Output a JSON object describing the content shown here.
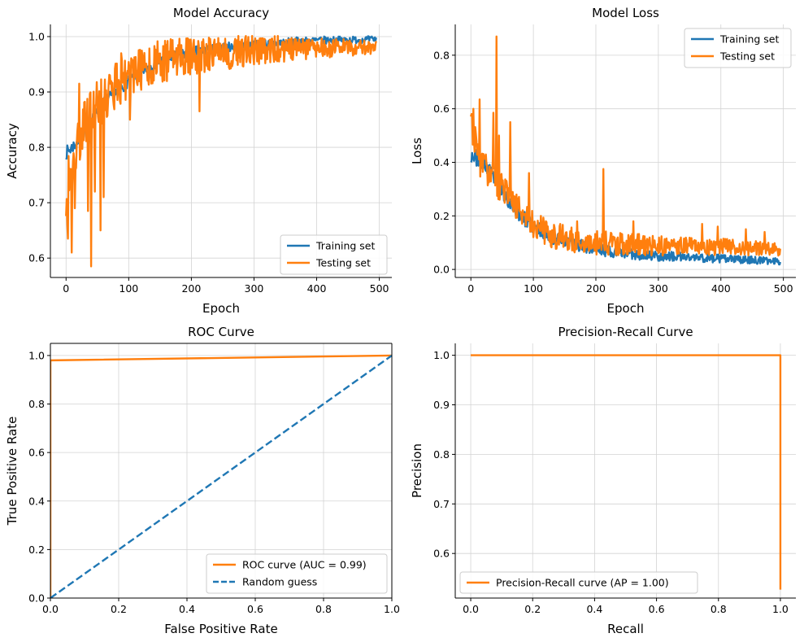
{
  "colors": {
    "training": "#1f77b4",
    "testing": "#ff7f0e",
    "grid": "#d3d3d3",
    "axis": "#000000"
  },
  "chart_data": [
    {
      "id": "accuracy",
      "type": "line",
      "title": "Model Accuracy",
      "xlabel": "Epoch",
      "ylabel": "Accuracy",
      "xlim": [
        -25,
        520
      ],
      "ylim": [
        0.565,
        1.022
      ],
      "xticks": [
        0,
        100,
        200,
        300,
        400,
        500
      ],
      "xtick_labels": [
        "0",
        "100",
        "200",
        "300",
        "400",
        "500"
      ],
      "yticks": [
        0.6,
        0.7,
        0.8,
        0.9,
        1.0
      ],
      "ytick_labels": [
        "0.6",
        "0.7",
        "0.8",
        "0.9",
        "1.0"
      ],
      "grid": true,
      "legend_position": "lower-right",
      "x_range": [
        0,
        495
      ],
      "series": [
        {
          "name": "Training set",
          "color": "#1f77b4",
          "style": "solid",
          "profile": [
            [
              0,
              0.79
            ],
            [
              10,
              0.8
            ],
            [
              25,
              0.82
            ],
            [
              40,
              0.85
            ],
            [
              60,
              0.88
            ],
            [
              80,
              0.9
            ],
            [
              100,
              0.92
            ],
            [
              130,
              0.945
            ],
            [
              160,
              0.96
            ],
            [
              200,
              0.972
            ],
            [
              250,
              0.98
            ],
            [
              300,
              0.985
            ],
            [
              350,
              0.99
            ],
            [
              400,
              0.993
            ],
            [
              450,
              0.994
            ],
            [
              495,
              0.995
            ]
          ],
          "noise": [
            0.012,
            0.006
          ],
          "seed": 7,
          "spikes": []
        },
        {
          "name": "Testing set",
          "color": "#ff7f0e",
          "style": "solid",
          "profile": [
            [
              0,
              0.72
            ],
            [
              5,
              0.74
            ],
            [
              15,
              0.8
            ],
            [
              30,
              0.84
            ],
            [
              50,
              0.88
            ],
            [
              75,
              0.91
            ],
            [
              100,
              0.93
            ],
            [
              150,
              0.955
            ],
            [
              200,
              0.965
            ],
            [
              250,
              0.97
            ],
            [
              300,
              0.975
            ],
            [
              350,
              0.978
            ],
            [
              400,
              0.98
            ],
            [
              495,
              0.98
            ]
          ],
          "noise": [
            0.05,
            0.012
          ],
          "seed": 19,
          "spikes": [
            [
              2,
              0.66
            ],
            [
              3,
              0.635
            ],
            [
              9,
              0.61
            ],
            [
              14,
              0.69
            ],
            [
              21,
              0.915
            ],
            [
              35,
              0.685
            ],
            [
              40,
              0.585
            ],
            [
              46,
              0.72
            ],
            [
              55,
              0.65
            ],
            [
              60,
              0.71
            ],
            [
              70,
              0.93
            ],
            [
              88,
              0.97
            ],
            [
              102,
              0.85
            ],
            [
              115,
              0.93
            ],
            [
              213,
              0.865
            ],
            [
              300,
              0.95
            ],
            [
              340,
              0.955
            ]
          ]
        }
      ]
    },
    {
      "id": "loss",
      "type": "line",
      "title": "Model Loss",
      "xlabel": "Epoch",
      "ylabel": "Loss",
      "xlim": [
        -25,
        520
      ],
      "ylim": [
        -0.03,
        0.915
      ],
      "xticks": [
        0,
        100,
        200,
        300,
        400,
        500
      ],
      "xtick_labels": [
        "0",
        "100",
        "200",
        "300",
        "400",
        "500"
      ],
      "yticks": [
        0.0,
        0.2,
        0.4,
        0.6,
        0.8
      ],
      "ytick_labels": [
        "0.0",
        "0.2",
        "0.4",
        "0.6",
        "0.8"
      ],
      "grid": true,
      "legend_position": "upper-right",
      "x_range": [
        0,
        495
      ],
      "series": [
        {
          "name": "Training set",
          "color": "#1f77b4",
          "style": "solid",
          "profile": [
            [
              0,
              0.43
            ],
            [
              20,
              0.4
            ],
            [
              40,
              0.33
            ],
            [
              60,
              0.26
            ],
            [
              80,
              0.2
            ],
            [
              100,
              0.16
            ],
            [
              130,
              0.12
            ],
            [
              160,
              0.1
            ],
            [
              200,
              0.075
            ],
            [
              250,
              0.06
            ],
            [
              300,
              0.05
            ],
            [
              350,
              0.045
            ],
            [
              400,
              0.04
            ],
            [
              450,
              0.035
            ],
            [
              495,
              0.03
            ]
          ],
          "noise": [
            0.03,
            0.012
          ],
          "seed": 23,
          "spikes": []
        },
        {
          "name": "Testing set",
          "color": "#ff7f0e",
          "style": "solid",
          "profile": [
            [
              0,
              0.55
            ],
            [
              5,
              0.5
            ],
            [
              15,
              0.4
            ],
            [
              30,
              0.36
            ],
            [
              50,
              0.3
            ],
            [
              70,
              0.24
            ],
            [
              100,
              0.17
            ],
            [
              130,
              0.13
            ],
            [
              160,
              0.11
            ],
            [
              200,
              0.1
            ],
            [
              250,
              0.095
            ],
            [
              300,
              0.09
            ],
            [
              350,
              0.09
            ],
            [
              400,
              0.085
            ],
            [
              450,
              0.08
            ],
            [
              495,
              0.075
            ]
          ],
          "noise": [
            0.06,
            0.025
          ],
          "seed": 31,
          "spikes": [
            [
              2,
              0.58
            ],
            [
              4,
              0.6
            ],
            [
              14,
              0.635
            ],
            [
              36,
              0.585
            ],
            [
              41,
              0.87
            ],
            [
              45,
              0.5
            ],
            [
              63,
              0.55
            ],
            [
              93,
              0.36
            ],
            [
              120,
              0.18
            ],
            [
              170,
              0.18
            ],
            [
              212,
              0.375
            ],
            [
              260,
              0.18
            ],
            [
              370,
              0.17
            ],
            [
              395,
              0.16
            ],
            [
              440,
              0.15
            ],
            [
              470,
              0.14
            ]
          ]
        }
      ]
    },
    {
      "id": "roc",
      "type": "line",
      "title": "ROC Curve",
      "xlabel": "False Positive Rate",
      "ylabel": "True Positive Rate",
      "xlim": [
        0.0,
        1.0
      ],
      "ylim": [
        0.0,
        1.05
      ],
      "xticks": [
        0.0,
        0.2,
        0.4,
        0.6,
        0.8,
        1.0
      ],
      "xtick_labels": [
        "0.0",
        "0.2",
        "0.4",
        "0.6",
        "0.8",
        "1.0"
      ],
      "yticks": [
        0.0,
        0.2,
        0.4,
        0.6,
        0.8,
        1.0
      ],
      "ytick_labels": [
        "0.0",
        "0.2",
        "0.4",
        "0.6",
        "0.8",
        "1.0"
      ],
      "grid": true,
      "legend_position": "lower-right",
      "series": [
        {
          "name": "ROC curve (AUC = 0.99)",
          "color": "#ff7f0e",
          "style": "solid",
          "x": [
            0.0,
            0.0,
            1.0
          ],
          "y": [
            0.0,
            0.98,
            1.0
          ]
        },
        {
          "name": "Random guess",
          "color": "#1f77b4",
          "style": "dashed",
          "x": [
            0.0,
            1.0
          ],
          "y": [
            0.0,
            1.0
          ]
        }
      ]
    },
    {
      "id": "pr",
      "type": "line",
      "title": "Precision-Recall Curve",
      "xlabel": "Recall",
      "ylabel": "Precision",
      "xlim": [
        -0.05,
        1.05
      ],
      "ylim": [
        0.51,
        1.024
      ],
      "xticks": [
        0.0,
        0.2,
        0.4,
        0.6,
        0.8,
        1.0
      ],
      "xtick_labels": [
        "0.0",
        "0.2",
        "0.4",
        "0.6",
        "0.8",
        "1.0"
      ],
      "yticks": [
        0.6,
        0.7,
        0.8,
        0.9,
        1.0
      ],
      "ytick_labels": [
        "0.6",
        "0.7",
        "0.8",
        "0.9",
        "1.0"
      ],
      "grid": true,
      "legend_position": "lower-left",
      "series": [
        {
          "name": "Precision-Recall curve (AP = 1.00)",
          "color": "#ff7f0e",
          "style": "solid",
          "x": [
            0.0,
            1.0,
            1.0
          ],
          "y": [
            1.0,
            1.0,
            0.527
          ]
        }
      ]
    }
  ]
}
